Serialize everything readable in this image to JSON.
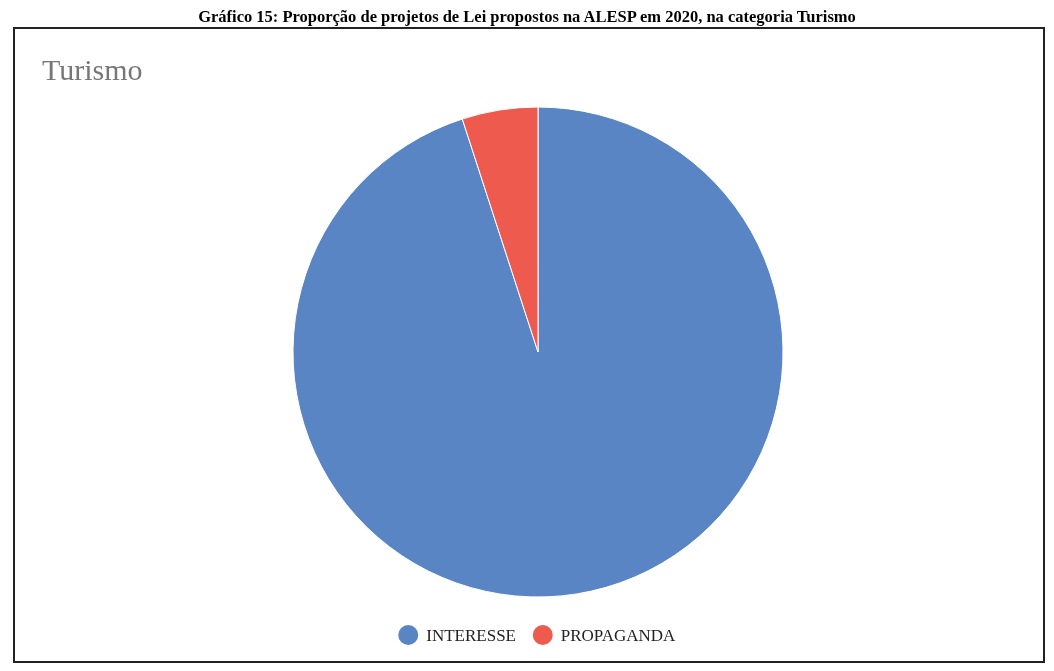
{
  "chart_data": {
    "type": "pie",
    "title": "Gráfico 15: Proporção de projetos de Lei propostos na ALESP em 2020, na categoria Turismo",
    "subtitle": "Turismo",
    "categories": [
      "INTERESSE",
      "PROPAGANDA"
    ],
    "values": [
      95,
      5
    ],
    "colors": [
      "#5a85c4",
      "#ef5a4f"
    ],
    "legend": "bottom"
  }
}
